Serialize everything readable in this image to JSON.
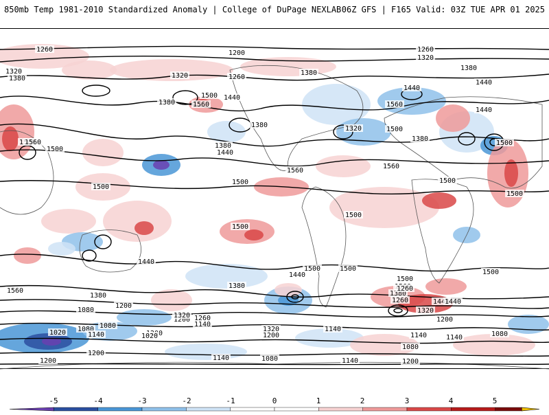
{
  "header": {
    "left": "850mb Temp 1981-2010 Standardized Anomaly | College of DuPage NEXLAB",
    "right": "06Z GFS | F165 Valid: 03Z TUE APR 01 2025"
  },
  "colors": {
    "neg5": "#6a3fb0",
    "neg4": "#2b4fa0",
    "neg3": "#4a96d6",
    "neg2": "#8fc1ea",
    "neg1": "#cfe3f6",
    "pos1": "#f7d2d2",
    "pos2": "#ef9a9a",
    "pos3": "#d94848",
    "pos4": "#b71c1c",
    "pos5": "#7a0c0c",
    "over": "#f2c200"
  },
  "colorbar": {
    "ticks": [
      "-5",
      "-4",
      "-3",
      "-2",
      "-1",
      "0",
      "1",
      "2",
      "3",
      "4",
      "5"
    ]
  },
  "contour_labels": [
    "1260",
    "1200",
    "1260",
    "1320",
    "1320",
    "1260",
    "1380",
    "1320",
    "1380",
    "1380",
    "1440",
    "1500",
    "1560",
    "1440",
    "1380",
    "1380",
    "1440",
    "1560",
    "1440",
    "1500",
    "1500",
    "1500",
    "1560",
    "1500",
    "1320",
    "1380",
    "1500",
    "1560",
    "1380",
    "1440",
    "1500",
    "1500",
    "1500",
    "1560",
    "1500",
    "1500",
    "1440",
    "1500",
    "1560",
    "1500",
    "1560",
    "1380",
    "1500",
    "1380",
    "1440",
    "1500",
    "1260",
    "1440",
    "1380",
    "1440",
    "1320",
    "1200",
    "1260",
    "1080",
    "1200",
    "1320",
    "1260",
    "1140",
    "1320",
    "1200",
    "1140",
    "1140",
    "1080",
    "1200",
    "1140",
    "1080",
    "1200",
    "1020",
    "1080",
    "1200",
    "1140",
    "1200",
    "1020",
    "1140",
    "1080",
    "1200",
    "1140",
    "1080"
  ]
}
